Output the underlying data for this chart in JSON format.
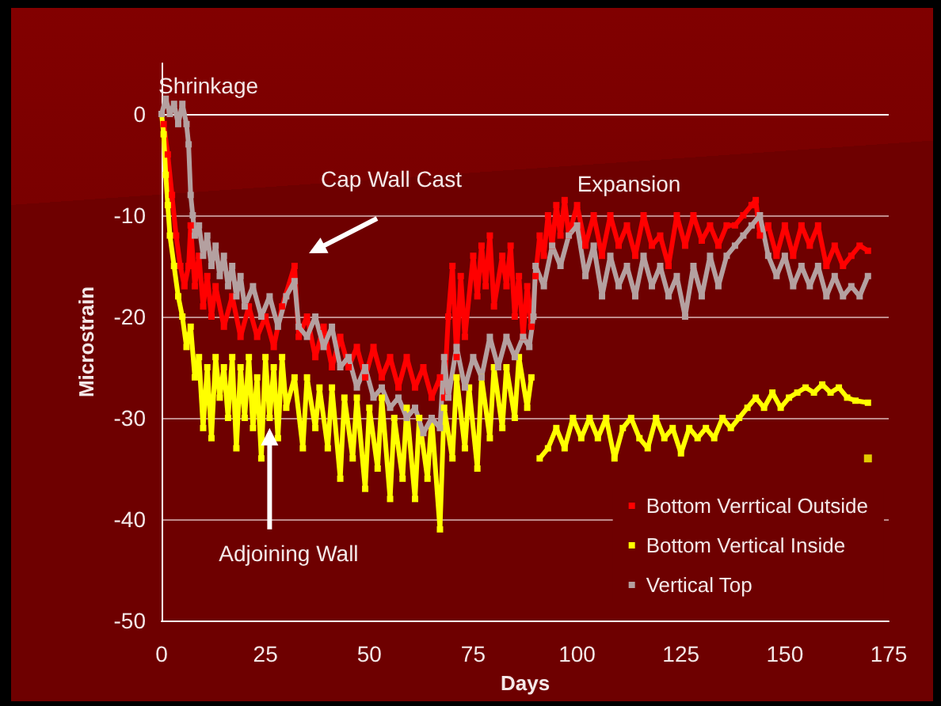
{
  "chart_data": {
    "type": "line",
    "xlabel": "Days",
    "ylabel": "Microstrain",
    "xlim": [
      0,
      175
    ],
    "xticks": [
      0,
      25,
      50,
      75,
      100,
      125,
      150,
      175
    ],
    "ylim": [
      -50,
      5
    ],
    "yticks": [
      -50,
      -40,
      -30,
      -20,
      -10,
      0
    ],
    "grid": "y",
    "legend": "bottom right",
    "marker": "square",
    "annotations": [
      "Shrinkage",
      "Cap Wall Cast",
      "Expansion",
      {
        "text": "Adjoining Wall",
        "x": 26,
        "y": -31
      }
    ],
    "series": [
      {
        "name": "Bottom Verrtical Outside",
        "color": "#ff0000",
        "x": [
          0.5,
          1.5,
          2.5,
          3.5,
          4.5,
          5.5,
          6.5,
          7,
          8,
          9,
          10,
          11,
          12,
          13,
          15,
          17,
          19,
          21,
          23,
          25,
          27,
          29,
          32,
          33,
          35,
          37,
          39,
          41,
          43,
          45,
          47,
          49,
          51,
          53,
          55,
          57,
          59,
          61,
          63,
          65,
          67,
          68,
          69,
          70,
          71,
          72,
          73,
          75,
          76,
          77,
          78,
          79,
          80,
          82,
          83,
          84,
          85,
          86,
          87,
          88,
          89,
          90,
          91,
          92,
          93,
          94,
          95,
          96,
          97,
          98,
          100,
          102,
          104,
          106,
          108,
          110,
          112,
          114,
          116,
          118,
          120,
          122,
          124,
          126,
          128,
          130,
          132,
          134,
          136,
          138,
          140,
          142,
          143,
          144,
          146,
          148,
          150,
          152,
          154,
          156,
          158,
          160,
          162,
          164,
          166,
          168,
          170
        ],
        "values": [
          -1,
          -4,
          -8,
          -12,
          -15,
          -17,
          -15,
          -11,
          -17,
          -14,
          -19,
          -16,
          -20,
          -17,
          -21,
          -18,
          -22,
          -19,
          -22,
          -20,
          -23,
          -19,
          -15,
          -22,
          -20,
          -24,
          -21,
          -25,
          -22,
          -25,
          -23,
          -26,
          -23,
          -26,
          -24,
          -27,
          -24,
          -27,
          -25,
          -28,
          -26,
          -28,
          -20,
          -15,
          -24,
          -16,
          -22,
          -14,
          -18,
          -13,
          -17,
          -12,
          -19,
          -14,
          -17,
          -13,
          -20,
          -16,
          -22,
          -17,
          -21,
          -16,
          -12,
          -14,
          -10,
          -13,
          -9,
          -12,
          -8.5,
          -12,
          -9,
          -13,
          -10,
          -14,
          -10,
          -13,
          -11,
          -14,
          -10,
          -13,
          -12,
          -15,
          -10,
          -13,
          -10,
          -12.5,
          -11,
          -13,
          -11,
          -11,
          -10,
          -9,
          -8.5,
          -12,
          -11,
          -14,
          -11,
          -14,
          -11,
          -13,
          -11,
          -15,
          -13,
          -15,
          -14,
          -13,
          -13.5
        ]
      },
      {
        "name": "Bottom Vertical Inside",
        "color": "#ffff00",
        "x": [
          0,
          0.5,
          1,
          1.5,
          2,
          3,
          4,
          5,
          6,
          7,
          8,
          9,
          10,
          11,
          12,
          13,
          14,
          15,
          16,
          17,
          18,
          19,
          20,
          21,
          22,
          23,
          24,
          25,
          26,
          27,
          28,
          29,
          30,
          32,
          34,
          35,
          37,
          38,
          40,
          41,
          43,
          44,
          46,
          47,
          49,
          50,
          52,
          53,
          55,
          56,
          58,
          59,
          61,
          62,
          64,
          65,
          67,
          68,
          70,
          71,
          73,
          74,
          76,
          77,
          79,
          80,
          82,
          83,
          85,
          86,
          88,
          89,
          90,
          91,
          93,
          95,
          97,
          99,
          101,
          103,
          105,
          107,
          109,
          111,
          113,
          115,
          117,
          119,
          121,
          123,
          125,
          127,
          129,
          131,
          133,
          135,
          137,
          139,
          141,
          143,
          145,
          147,
          149,
          151,
          153,
          155,
          157,
          159,
          161,
          163,
          165,
          167,
          170
        ],
        "values": [
          0,
          -2,
          -6,
          -9,
          -12,
          -15,
          -18,
          -20,
          -23,
          -21,
          -26,
          -24,
          -31,
          -25,
          -32,
          -24,
          -28,
          -25,
          -30,
          -24,
          -33,
          -25,
          -30,
          -24,
          -31,
          -26,
          -34,
          -24,
          -30,
          -25,
          -32,
          -24,
          -29,
          -26,
          -33,
          -26,
          -31,
          -27,
          -33,
          -27,
          -36,
          -28,
          -34,
          -28,
          -37,
          -29,
          -35,
          -28,
          -38,
          -30,
          -36,
          -29,
          -38,
          -30,
          -36,
          -30,
          -41,
          -29,
          -34,
          -26,
          -33,
          -27,
          -35,
          -26,
          -32,
          -25,
          -31,
          -25,
          -30,
          -24,
          -29,
          -26,
          null,
          -34,
          -33,
          -31,
          -33,
          -30,
          -32,
          -30,
          -32,
          -30,
          -34,
          -31,
          -30,
          -32,
          -33,
          -30,
          -32,
          -31,
          -33.5,
          -31,
          -32,
          -31,
          -32,
          -30,
          -31,
          -30,
          -29,
          -28,
          -29,
          -27.5,
          -29,
          -28,
          -27.5,
          -27,
          -27.5,
          -26.7,
          -27.5,
          -27,
          -28,
          -28.3,
          -28.5
        ]
      },
      {
        "name": "Vertical Top",
        "color": "#b4a0a0",
        "x": [
          0,
          1,
          2,
          3,
          4,
          5,
          6,
          6.5,
          7,
          7.5,
          8,
          9,
          10,
          11,
          12,
          13,
          14,
          15,
          16,
          17,
          18,
          19,
          20,
          22,
          24,
          26,
          28,
          30,
          32,
          33,
          35,
          37,
          39,
          41,
          43,
          45,
          47,
          49,
          51,
          53,
          55,
          57,
          59,
          61,
          63,
          65,
          67,
          68,
          69,
          71,
          73,
          75,
          77,
          79,
          81,
          83,
          85,
          87,
          88.5,
          89.5,
          90,
          92,
          94,
          96,
          98,
          100,
          102,
          104,
          106,
          108,
          110,
          112,
          114,
          116,
          118,
          120,
          122,
          124,
          126,
          128,
          130,
          132,
          134,
          136,
          138,
          140,
          142,
          144,
          146,
          148,
          150,
          152,
          154,
          156,
          158,
          160,
          162,
          164,
          166,
          168,
          170
        ],
        "values": [
          0,
          1.5,
          0,
          1,
          -1,
          1,
          -1,
          -3,
          -8,
          -10,
          -12,
          -11,
          -14,
          -12,
          -15,
          -13,
          -16,
          -14,
          -17,
          -15,
          -18,
          -16,
          -19,
          -17,
          -20,
          -18,
          -21,
          -18,
          -16.5,
          -21,
          -22,
          -20,
          -23,
          -21,
          -25,
          -24,
          -27,
          -25,
          -28,
          -27,
          -29,
          -28,
          -30,
          -29,
          -31.5,
          -30,
          -31,
          -24,
          -28,
          -23,
          -27,
          -24,
          -26,
          -22,
          -25,
          -22,
          -24,
          -22,
          -23,
          -20,
          -15,
          -17,
          -13,
          -15,
          -12,
          -11,
          -16,
          -13,
          -18,
          -14,
          -17,
          -15,
          -18,
          -14,
          -17,
          -15,
          -18,
          -16,
          -20,
          -15,
          -18,
          -14,
          -17,
          -14,
          -13,
          -12,
          -11,
          -10,
          -14,
          -16,
          -14,
          -17,
          -15,
          -17,
          -15,
          -18,
          -16,
          -18,
          -17,
          -18,
          -16
        ]
      },
      {
        "type": "scatter",
        "color": "#ffff00",
        "x": [
          170
        ],
        "values": [
          -34
        ]
      }
    ]
  }
}
